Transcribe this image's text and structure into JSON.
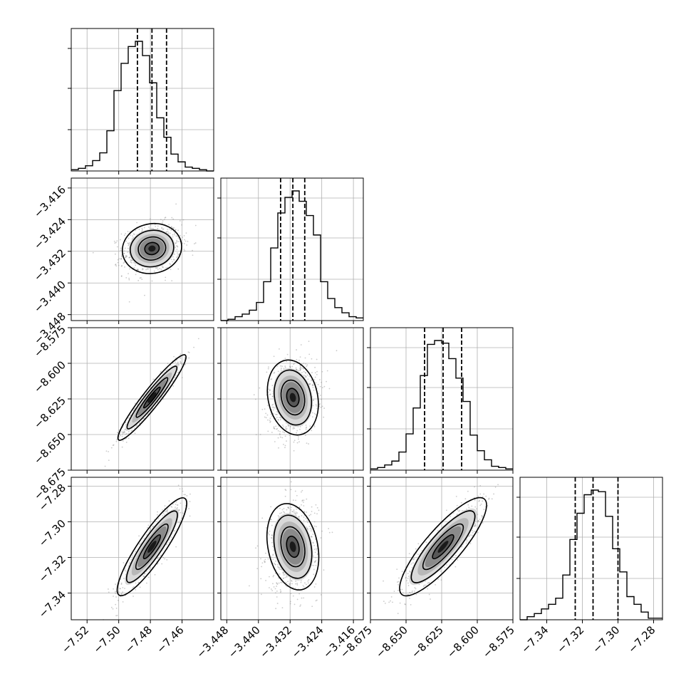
{
  "chart_data": {
    "type": "corner",
    "description_parameters": 4,
    "parameters": [
      {
        "range": [
          -7.53,
          -7.44
        ],
        "ticks": [
          -7.52,
          -7.5,
          -7.48,
          -7.46
        ],
        "tick_labels": [
          "−7.52",
          "−7.50",
          "−7.48",
          "−7.46"
        ],
        "quantiles": [
          -7.4882,
          -7.479,
          -7.4698
        ]
      },
      {
        "range": [
          -3.4495,
          -3.4135
        ],
        "ticks": [
          -3.448,
          -3.44,
          -3.432,
          -3.424,
          -3.416
        ],
        "tick_labels": [
          "−3.448",
          "−3.440",
          "−3.432",
          "−3.424",
          "−3.416"
        ],
        "quantiles": [
          -3.4344,
          -3.4313,
          -3.4283
        ]
      },
      {
        "range": [
          -8.675,
          -8.575
        ],
        "ticks": [
          -8.675,
          -8.65,
          -8.625,
          -8.6,
          -8.575
        ],
        "tick_labels": [
          "−8.675",
          "−8.650",
          "−8.625",
          "−8.600",
          "−8.575"
        ],
        "quantiles": [
          -8.637,
          -8.624,
          -8.611
        ]
      },
      {
        "range": [
          -7.355,
          -7.275
        ],
        "ticks": [
          -7.34,
          -7.32,
          -7.3,
          -7.28
        ],
        "tick_labels": [
          "−7.34",
          "−7.32",
          "−7.30",
          "−7.28"
        ],
        "quantiles": [
          -7.324,
          -7.314,
          -7.3
        ]
      }
    ],
    "histograms": [
      [
        1,
        2,
        4,
        8,
        14,
        31,
        62,
        83,
        96,
        100,
        89,
        68,
        41,
        26,
        13,
        7,
        3,
        2,
        1,
        0
      ],
      [
        0,
        1,
        3,
        5,
        8,
        14,
        30,
        56,
        83,
        95,
        100,
        92,
        81,
        66,
        30,
        17,
        10,
        6,
        3,
        2
      ],
      [
        1,
        2,
        4,
        7,
        14,
        28,
        48,
        73,
        97,
        100,
        98,
        86,
        71,
        53,
        27,
        15,
        8,
        3,
        2,
        1
      ],
      [
        0,
        2,
        4,
        7,
        10,
        14,
        29,
        52,
        69,
        81,
        84,
        83,
        67,
        46,
        31,
        15,
        10,
        5,
        1,
        1
      ]
    ],
    "correlations": [
      [
        1,
        0.2,
        0.95,
        0.9
      ],
      [
        0.2,
        1,
        0.1,
        0.1
      ],
      [
        0.95,
        0.1,
        1,
        0.85
      ],
      [
        0.9,
        0.1,
        0.85,
        1
      ]
    ],
    "grid": true,
    "line_color": "#000000",
    "point_color": "#8c8c8c"
  }
}
